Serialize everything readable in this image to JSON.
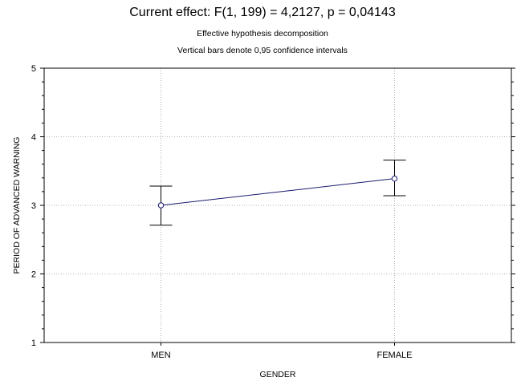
{
  "title": "Current effect: F(1, 199) = 4,2127, p = 0,04143",
  "subtitle_1": "Effective hypothesis decomposition",
  "subtitle_2": "Vertical bars denote 0,95 confidence intervals",
  "chart_data": {
    "type": "line",
    "categories": [
      "MEN",
      "FEMALE"
    ],
    "series": [
      {
        "values": [
          3.0,
          3.39
        ],
        "ci_lower": [
          2.71,
          3.14
        ],
        "ci_upper": [
          3.28,
          3.66
        ]
      }
    ],
    "xlabel": "GENDER",
    "ylabel": "PERIOD OF ADVANCED WARNING",
    "ylim": [
      1,
      5
    ],
    "yticks": [
      "1",
      "2",
      "3",
      "4",
      "5"
    ],
    "grid": true,
    "colors": {
      "line": "#1a1a6e",
      "grid": "#9a9a9a",
      "frame": "#000000"
    }
  }
}
